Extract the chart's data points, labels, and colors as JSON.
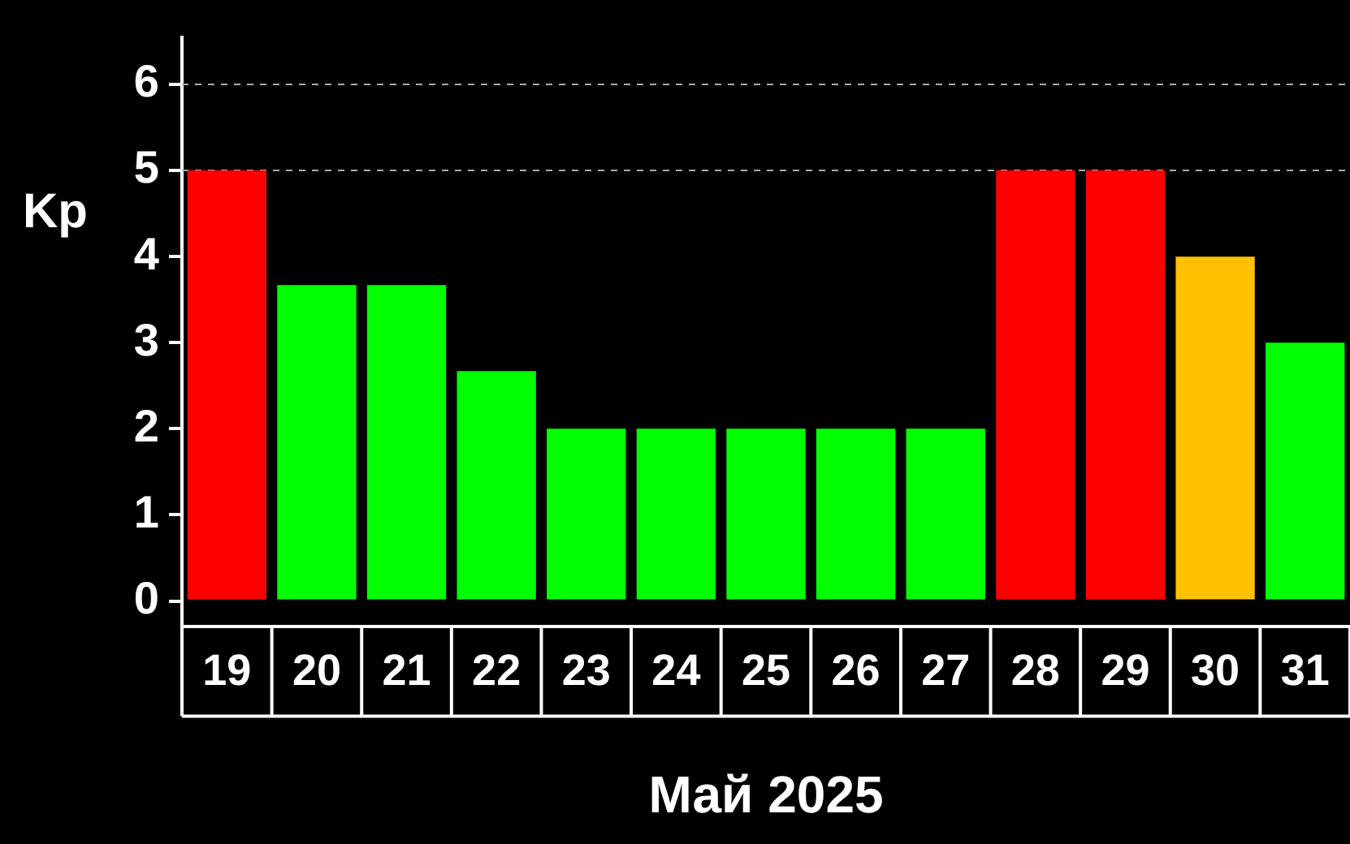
{
  "chart_data": {
    "type": "bar",
    "xlabel": "Май 2025",
    "ylabel": "Kp",
    "categories": [
      "19",
      "20",
      "21",
      "22",
      "23",
      "24",
      "25",
      "26",
      "27",
      "28",
      "29",
      "30",
      "31"
    ],
    "values": [
      5,
      3.67,
      3.67,
      2.67,
      2,
      2,
      2,
      2,
      2,
      5,
      5,
      4,
      3
    ],
    "colors": [
      "#ff0000",
      "#00ff00",
      "#00ff00",
      "#00ff00",
      "#00ff00",
      "#00ff00",
      "#00ff00",
      "#00ff00",
      "#00ff00",
      "#ff0000",
      "#ff0000",
      "#ffc000",
      "#00ff00"
    ],
    "ylim": [
      -0.3,
      6.55
    ],
    "yticks": [
      0,
      1,
      2,
      3,
      4,
      5,
      6
    ],
    "grid": false,
    "legend": false,
    "ref_lines": [
      {
        "axis": "y",
        "value": 5,
        "color": "#aaaaaa",
        "line_style": "dashed"
      },
      {
        "axis": "y",
        "value": 6,
        "color": "#aaaaaa",
        "line_style": "dashed"
      }
    ]
  }
}
